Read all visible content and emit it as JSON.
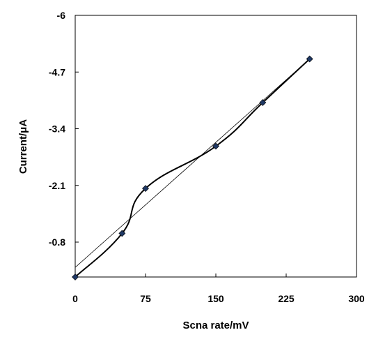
{
  "chart_data": {
    "type": "scatter",
    "title": "",
    "xlabel": "Scna rate/mV",
    "ylabel": "Current/μA",
    "xlim": [
      0,
      300
    ],
    "ylim": [
      0.0,
      -6
    ],
    "y_reversed": true,
    "grid": false,
    "legend": "none",
    "x_ticks": [
      "0",
      "75",
      "150",
      "225",
      "300"
    ],
    "x_tick_values": [
      0,
      75,
      150,
      225,
      300
    ],
    "y_ticks": [
      "-6",
      "-4.7",
      "-3.4",
      "-2.1",
      "-0.8"
    ],
    "y_tick_values": [
      -6,
      -4.7,
      -3.4,
      -2.1,
      -0.8
    ],
    "series": [
      {
        "style": "smooth-line-with-diamond-markers",
        "color": "#000000",
        "marker_color": "#1F3864",
        "points": [
          {
            "x": 0,
            "y": 0.0
          },
          {
            "x": 50,
            "y": -1.0
          },
          {
            "x": 75,
            "y": -2.03
          },
          {
            "x": 150,
            "y": -3.0
          },
          {
            "x": 200,
            "y": -4.0
          },
          {
            "x": 250,
            "y": -5.0
          }
        ]
      },
      {
        "style": "linear-trendline",
        "color": "#000000",
        "points": [
          {
            "x": 0,
            "y": -0.22
          },
          {
            "x": 250,
            "y": -5.0
          }
        ]
      }
    ]
  }
}
